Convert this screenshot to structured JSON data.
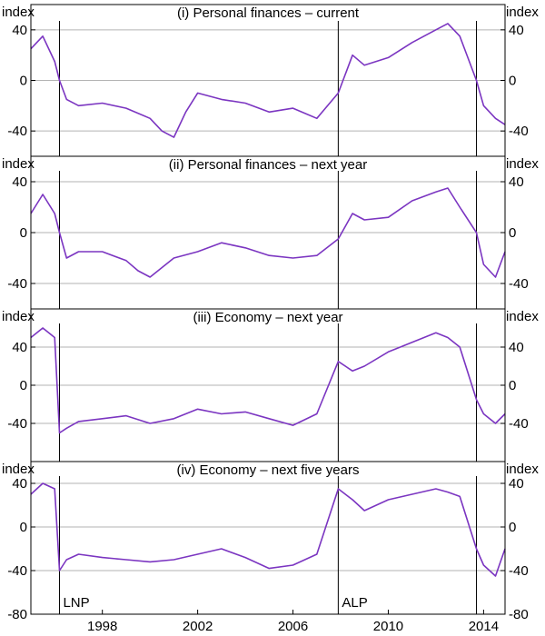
{
  "chart_data": {
    "type": "line",
    "x_range": [
      1995.0,
      2014.9
    ],
    "x_ticks": [
      1998,
      2002,
      2006,
      2010,
      2014
    ],
    "x_tick_labels": [
      "1998",
      "2002",
      "2006",
      "2010",
      "2014"
    ],
    "unit_label": "index",
    "line_color": "#7b35c1",
    "axis_color": "#000000",
    "grid_color": "#b3b3b3",
    "event_lines": [
      {
        "x": 1996.2,
        "label": "LNP"
      },
      {
        "x": 2007.9,
        "label": "ALP"
      },
      {
        "x": 2013.7,
        "label": ""
      }
    ],
    "panels": [
      {
        "title": "(i) Personal finances – current",
        "ylim": [
          -60,
          60
        ],
        "yticks": [
          40,
          0,
          -40
        ],
        "ytick_labels": [
          "40",
          "0",
          "-40"
        ],
        "series": {
          "x": [
            1995.0,
            1995.5,
            1996.0,
            1996.2,
            1996.5,
            1997.0,
            1998.0,
            1999.0,
            2000.0,
            2000.5,
            2001.0,
            2001.5,
            2002.0,
            2003.0,
            2004.0,
            2005.0,
            2006.0,
            2007.0,
            2007.9,
            2008.5,
            2009.0,
            2010.0,
            2011.0,
            2012.0,
            2012.5,
            2013.0,
            2013.7,
            2014.0,
            2014.5,
            2014.9
          ],
          "y": [
            25,
            35,
            15,
            0,
            -15,
            -20,
            -18,
            -22,
            -30,
            -40,
            -45,
            -25,
            -10,
            -15,
            -18,
            -25,
            -22,
            -30,
            -10,
            20,
            12,
            18,
            30,
            40,
            45,
            35,
            0,
            -20,
            -30,
            -35
          ]
        }
      },
      {
        "title": "(ii) Personal finances – next year",
        "ylim": [
          -60,
          60
        ],
        "yticks": [
          40,
          0,
          -40
        ],
        "ytick_labels": [
          "40",
          "0",
          "-40"
        ],
        "series": {
          "x": [
            1995.0,
            1995.5,
            1996.0,
            1996.2,
            1996.5,
            1997.0,
            1998.0,
            1999.0,
            1999.5,
            2000.0,
            2001.0,
            2002.0,
            2003.0,
            2004.0,
            2005.0,
            2006.0,
            2007.0,
            2007.9,
            2008.5,
            2009.0,
            2010.0,
            2011.0,
            2012.0,
            2012.5,
            2013.0,
            2013.7,
            2014.0,
            2014.5,
            2014.9
          ],
          "y": [
            15,
            30,
            15,
            0,
            -20,
            -15,
            -15,
            -22,
            -30,
            -35,
            -20,
            -15,
            -8,
            -12,
            -18,
            -20,
            -18,
            -5,
            15,
            10,
            12,
            25,
            32,
            35,
            20,
            0,
            -25,
            -35,
            -15
          ]
        }
      },
      {
        "title": "(iii) Economy – next year",
        "ylim": [
          -80,
          80
        ],
        "yticks": [
          40,
          0,
          -40
        ],
        "ytick_labels": [
          "40",
          "0",
          "-40"
        ],
        "series": {
          "x": [
            1995.0,
            1995.5,
            1996.0,
            1996.2,
            1996.5,
            1997.0,
            1998.0,
            1999.0,
            2000.0,
            2001.0,
            2002.0,
            2003.0,
            2004.0,
            2005.0,
            2006.0,
            2007.0,
            2007.9,
            2008.5,
            2009.0,
            2010.0,
            2011.0,
            2012.0,
            2012.5,
            2013.0,
            2013.7,
            2014.0,
            2014.5,
            2014.9
          ],
          "y": [
            50,
            60,
            50,
            -50,
            -45,
            -38,
            -35,
            -32,
            -40,
            -35,
            -25,
            -30,
            -28,
            -35,
            -42,
            -30,
            25,
            15,
            20,
            35,
            45,
            55,
            50,
            40,
            -15,
            -30,
            -40,
            -30
          ]
        }
      },
      {
        "title": "(iv) Economy – next five years",
        "ylim": [
          -80,
          60
        ],
        "yticks": [
          40,
          0,
          -40,
          -80
        ],
        "ytick_labels": [
          "40",
          "0",
          "-40",
          "-80"
        ],
        "series": {
          "x": [
            1995.0,
            1995.5,
            1996.0,
            1996.2,
            1996.5,
            1997.0,
            1998.0,
            1999.0,
            2000.0,
            2001.0,
            2002.0,
            2003.0,
            2004.0,
            2005.0,
            2006.0,
            2007.0,
            2007.9,
            2008.5,
            2009.0,
            2010.0,
            2011.0,
            2012.0,
            2012.5,
            2013.0,
            2013.7,
            2014.0,
            2014.5,
            2014.9
          ],
          "y": [
            30,
            40,
            35,
            -40,
            -30,
            -25,
            -28,
            -30,
            -32,
            -30,
            -25,
            -20,
            -28,
            -38,
            -35,
            -25,
            35,
            25,
            15,
            25,
            30,
            35,
            32,
            28,
            -20,
            -35,
            -45,
            -20
          ]
        }
      }
    ]
  }
}
